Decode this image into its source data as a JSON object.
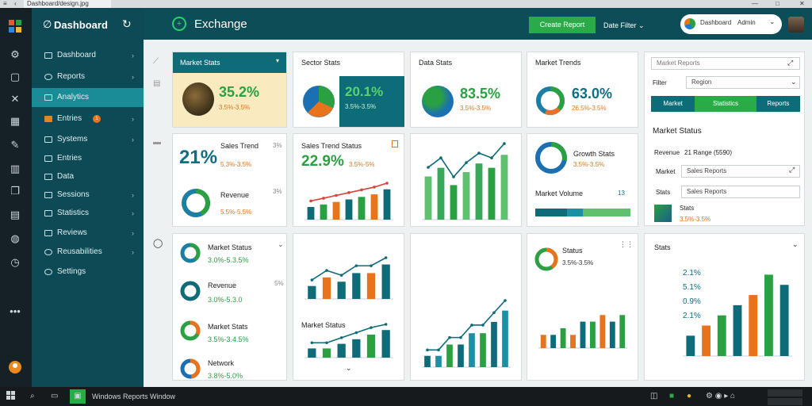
{
  "browser": {
    "tabs": [
      "Dashboard/design.jpg",
      "",
      ""
    ],
    "icons": [
      "menu-icon",
      "back-icon",
      "tab-icon"
    ]
  },
  "rail": {
    "icons": [
      "apps-icon",
      "gear-icon",
      "chat-icon",
      "tools-icon",
      "calendar-icon",
      "pen-icon",
      "chart-icon",
      "copy-icon",
      "book-icon",
      "globe-icon",
      "clock-icon",
      "more-icon",
      "user-icon"
    ]
  },
  "sidebar": {
    "title": "Dashboard",
    "items": [
      {
        "label": "Dashboard",
        "chevron": "›"
      },
      {
        "label": "Reports",
        "chevron": "›"
      },
      {
        "label": "Analytics",
        "chevron": "",
        "active": true
      },
      {
        "label": "Entries",
        "chevron": "›",
        "badge": "1"
      },
      {
        "label": "Systems",
        "chevron": "›"
      },
      {
        "label": "Entries",
        "chevron": ""
      },
      {
        "label": "Data",
        "chevron": ""
      },
      {
        "label": "Sessions",
        "chevron": "›"
      },
      {
        "label": "Statistics",
        "chevron": "›"
      },
      {
        "label": "Reviews",
        "chevron": "›"
      },
      {
        "label": "Reusabilities",
        "chevron": "›"
      },
      {
        "label": "Settings",
        "chevron": ""
      }
    ]
  },
  "header": {
    "title": "Exchange",
    "primary_btn": "Create Report",
    "dropdown": "Date Filter",
    "account": "Dashboard",
    "account_sub": "Admin"
  },
  "cards": {
    "c1": {
      "title": "Market Stats",
      "value": "35.2%",
      "sub": "3.5%-3.5%"
    },
    "c2": {
      "title": "Sector Stats",
      "value": "20.1%",
      "sub": "3.5%-3.5%"
    },
    "c3": {
      "title": "Data Stats",
      "value": "83.5%",
      "sub": "3.5%-3.5%"
    },
    "c4": {
      "title": "Market Trends",
      "value": "63.0%",
      "sub": "26.5%-3.5%"
    },
    "c5": {
      "title": "Sales Trend",
      "value": "21%",
      "sub": "5.3%-3.5%",
      "pct": "3%",
      "sub_title": "Revenue",
      "sub_value": "5.5%-5.5%",
      "sub_pct": "3%"
    },
    "c6": {
      "title": "Sales Trend Status",
      "value": "22.9%",
      "sub": "3.5%-5%"
    },
    "c8": {
      "title": "Growth Stats",
      "value": "3.5%-3.5%",
      "footer": "Market Volume",
      "footer_pct": "13"
    },
    "c9": {
      "title": "Market Status",
      "rows": [
        {
          "title": "Market Status",
          "value": "3.0%-5.3.5%"
        },
        {
          "title": "Revenue",
          "value": "3.0%-5.3.0"
        },
        {
          "title": "Market Stats",
          "value": "3.5%-3.4.5%"
        },
        {
          "title": "Network",
          "value": "3.8%-5.0%"
        }
      ],
      "pct": "5%"
    },
    "c10": {
      "sub_title": "Market Status"
    },
    "c12": {
      "title": "Status",
      "value": "3.5%-3.5%"
    }
  },
  "right_panel": {
    "search_placeholder": "Market Reports",
    "filter_label": "Filter",
    "filter_value": "Region",
    "seg": [
      "Market",
      "Statistics",
      "Reports"
    ],
    "section": "Market Status",
    "summary_label": "Revenue",
    "summary_value": "21 Range (5590)",
    "field1_label": "Market",
    "field1_value": "Sales Reports",
    "field2_label": "Stats",
    "field2_value": "Sales Reports",
    "mini_title": "Stats",
    "mini_value": "3.5%-3.5%"
  },
  "bottom_right": {
    "title": "Stats",
    "labels": [
      "2.1%",
      "5.1%",
      "0.9%",
      "2.1%"
    ]
  },
  "taskbar": {
    "app_label": "Windows Reports Window"
  },
  "chart_data": [
    {
      "type": "bar",
      "series": [
        {
          "name": "",
          "values": [
            3,
            4,
            5,
            6,
            7,
            8,
            9
          ]
        },
        {
          "name": "",
          "values": [
            5,
            6,
            7,
            8,
            9,
            10,
            12
          ]
        }
      ]
    },
    {
      "type": "bar",
      "values": [
        10,
        12,
        8,
        11,
        13,
        12,
        15
      ]
    },
    {
      "type": "bar",
      "values": [
        3,
        5,
        4,
        6,
        6,
        8
      ]
    },
    {
      "type": "bar",
      "values": [
        2,
        2,
        3,
        4,
        5,
        6
      ]
    },
    {
      "type": "bar",
      "values": [
        1,
        1,
        2,
        2,
        3,
        3,
        4,
        5
      ]
    },
    {
      "type": "bar",
      "values": [
        2,
        2,
        3,
        2,
        4,
        4,
        5,
        4,
        5
      ]
    },
    {
      "type": "bar",
      "values": [
        2,
        3,
        4,
        5,
        6,
        8,
        7
      ]
    },
    {
      "type": "bar",
      "values": [
        2,
        4,
        5,
        6,
        5,
        7,
        8,
        9
      ]
    }
  ]
}
